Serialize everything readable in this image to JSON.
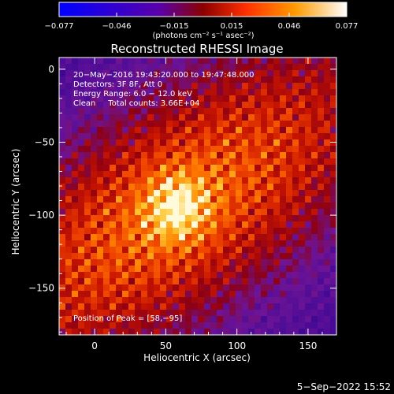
{
  "chart_data": {
    "type": "heatmap",
    "title": "Reconstructed RHESSI Image",
    "xlabel": "Heliocentric X (arcsec)",
    "ylabel": "Heliocentric Y (arcsec)",
    "xlim": [
      -25,
      170
    ],
    "ylim": [
      -182,
      8
    ],
    "x_ticks": [
      0,
      50,
      100,
      150
    ],
    "y_ticks": [
      0,
      -50,
      -100,
      -150
    ],
    "x_tick_labels": [
      "0",
      "50",
      "100",
      "150"
    ],
    "y_tick_labels": [
      "0",
      "−50",
      "−100",
      "−150"
    ],
    "colorbar": {
      "range": [
        -0.077,
        0.077
      ],
      "tick_labels": [
        "−0.077",
        "−0.046",
        "−0.015",
        "0.015",
        "0.046",
        "0.077"
      ],
      "units": "(photons cm⁻² s⁻¹ asec⁻²)",
      "colors": [
        "#0000ff",
        "#5a00a8",
        "#8a0000",
        "#ff3000",
        "#ff9a00",
        "#ffffff"
      ]
    },
    "annotations": [
      "20−May−2016 19:43:20.000 to 19:47:48.000",
      "Detectors: 3F 8F, Att 0",
      "Energy Range: 6.0 − 12.0 keV",
      "Clean     Total counts: 3.66E+04"
    ],
    "peak_label": "Position of Peak = [58,−95]",
    "peak": {
      "x": 58,
      "y": -95
    },
    "source_major_axis_angle_deg": 33
  },
  "footer": {
    "date": "5−Sep−2022 15:52"
  }
}
